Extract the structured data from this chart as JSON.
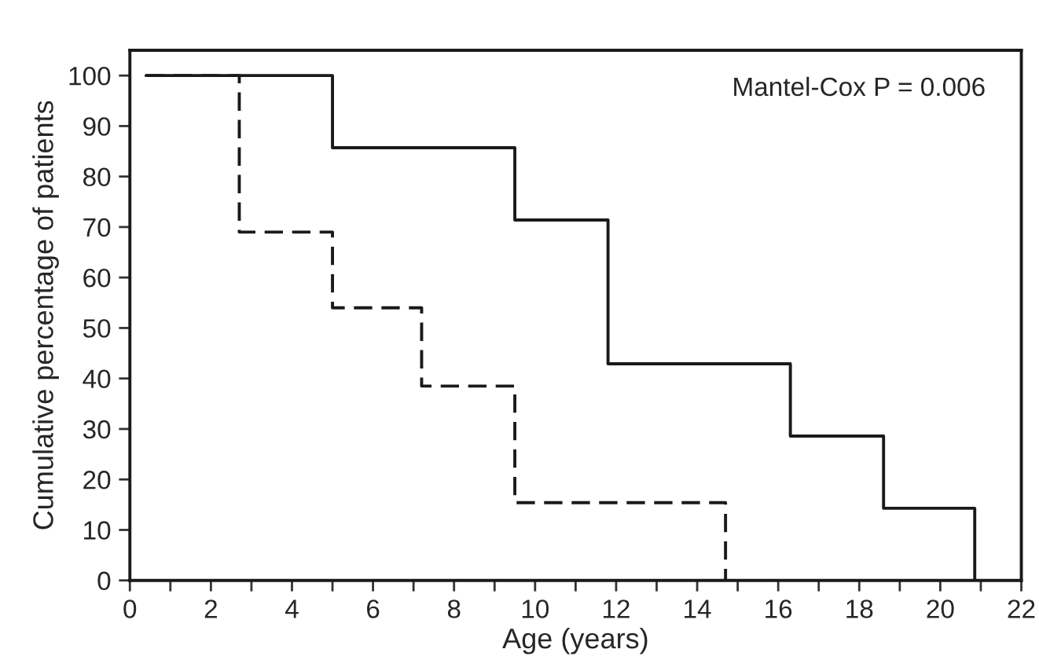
{
  "chart_data": {
    "type": "step",
    "xlabel": "Age (years)",
    "ylabel": "Cumulative percentage of patients",
    "annotations": [
      "Mantel-Cox P = 0.006"
    ],
    "series": [
      {
        "color": "#1a1a1a",
        "line_style": "solid",
        "x": [
          0.4,
          5.0,
          9.5,
          11.8,
          16.3,
          18.6,
          20.85
        ],
        "values": [
          100,
          85.7,
          71.4,
          42.9,
          28.6,
          14.3,
          0
        ]
      },
      {
        "color": "#1a1a1a",
        "line_style": "dashed",
        "x": [
          0.4,
          2.7,
          5.0,
          7.2,
          9.5,
          14.7
        ],
        "values": [
          100,
          69,
          54,
          38.5,
          15.4,
          0
        ]
      }
    ],
    "xlim": [
      0,
      22
    ],
    "ylim": [
      0,
      105
    ],
    "xticks": [
      0,
      {
        "value": 1,
        "label": null
      },
      2,
      {
        "value": 3,
        "label": null
      },
      4,
      {
        "value": 5,
        "label": null
      },
      6,
      {
        "value": 7,
        "label": null
      },
      8,
      {
        "value": 9,
        "label": null
      },
      10,
      {
        "value": 11,
        "label": null
      },
      12,
      {
        "value": 13,
        "label": null
      },
      14,
      {
        "value": 15,
        "label": null
      },
      16,
      {
        "value": 17,
        "label": null
      },
      18,
      {
        "value": 19,
        "label": null
      },
      20,
      {
        "value": 21,
        "label": null
      },
      22
    ],
    "yticks": [
      0,
      10,
      20,
      30,
      40,
      50,
      60,
      70,
      80,
      90,
      100
    ],
    "grid": false,
    "legend": false
  }
}
